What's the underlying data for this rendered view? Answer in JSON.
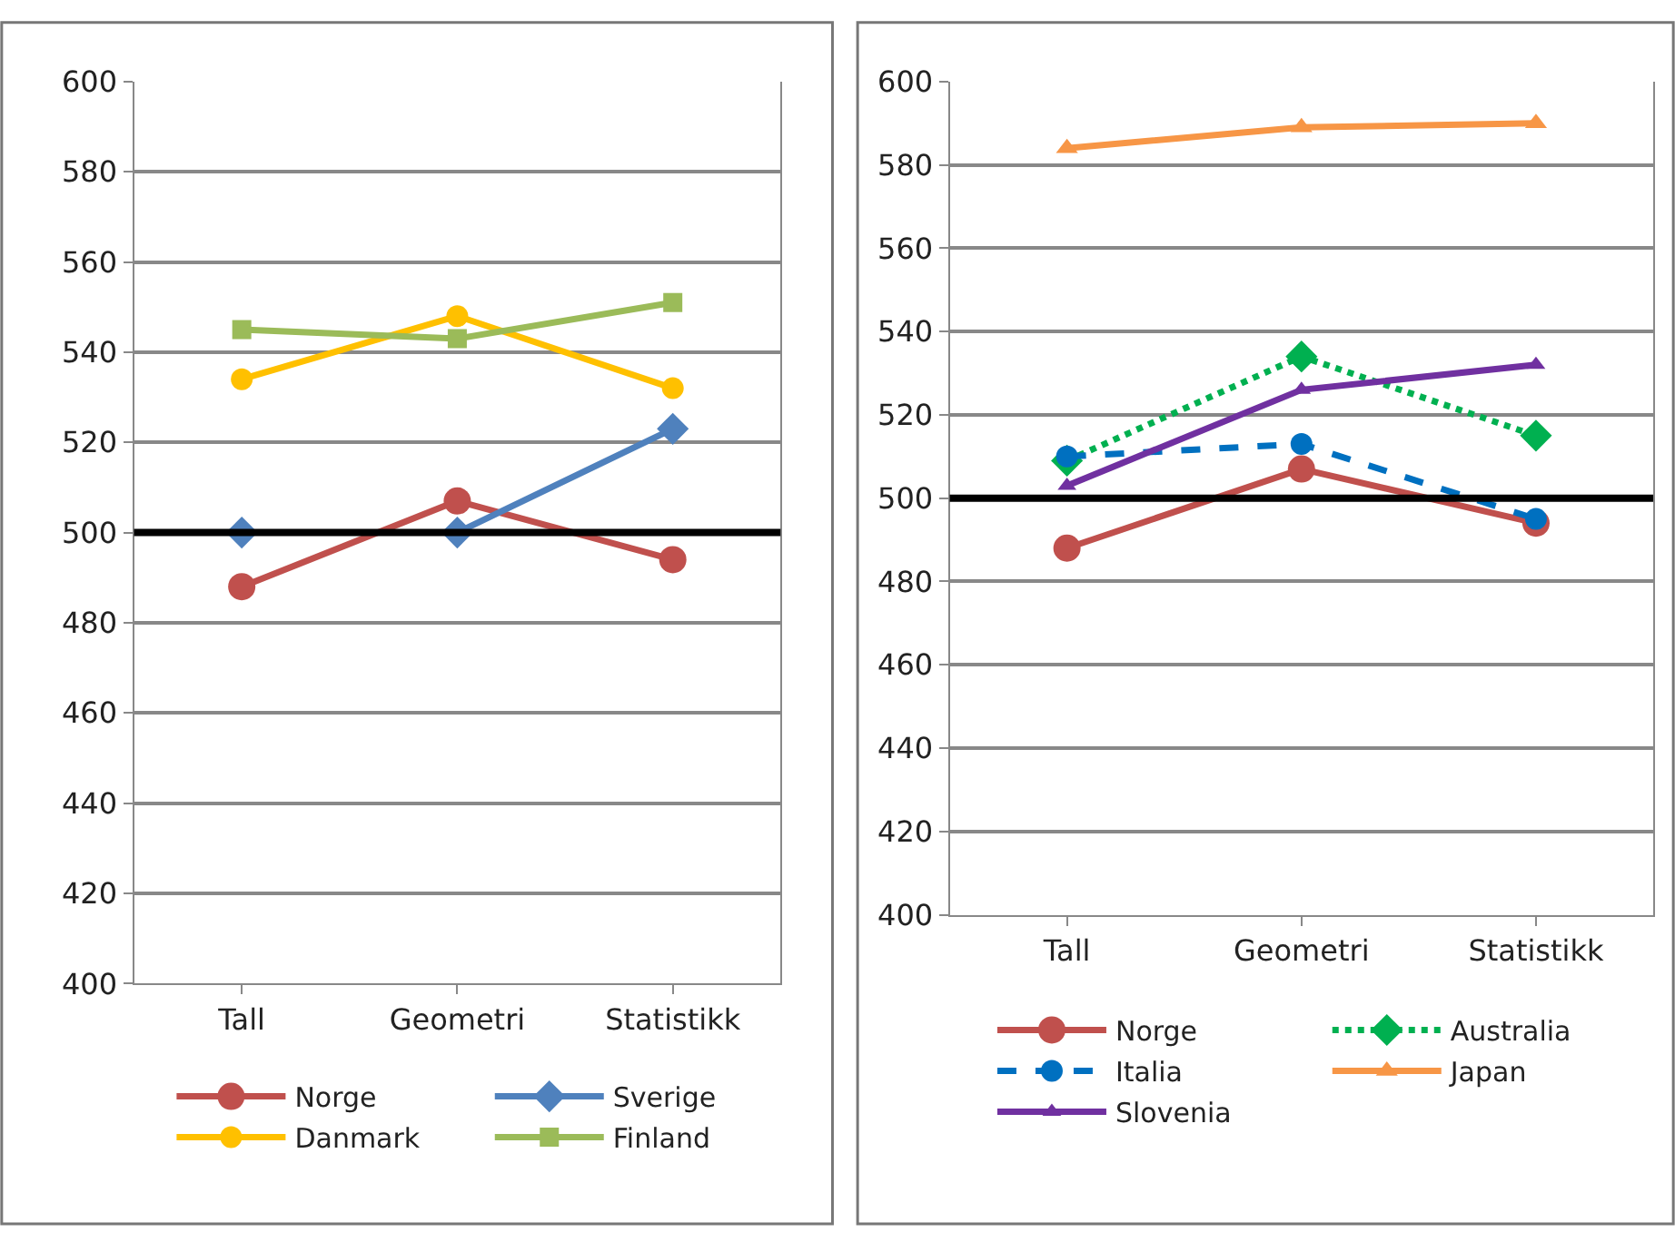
{
  "chart_data": [
    {
      "type": "line",
      "categories": [
        "Tall",
        "Geometri",
        "Statistikk"
      ],
      "ylim": [
        400,
        600
      ],
      "yticks": [
        400,
        420,
        440,
        460,
        480,
        500,
        520,
        540,
        560,
        580,
        600
      ],
      "grid": "y",
      "legend": "bottom",
      "ref_lines": [
        {
          "axis": "y",
          "value": 500,
          "color": "#000000"
        }
      ],
      "series": [
        {
          "name": "Norge",
          "color": "#c0504d",
          "values": [
            488,
            507,
            494
          ],
          "marker": "circle",
          "line_style": "solid"
        },
        {
          "name": "Sverige",
          "color": "#4f81bd",
          "values": [
            500,
            500,
            523
          ],
          "marker": "diamond",
          "line_style": "solid"
        },
        {
          "name": "Danmark",
          "color": "#ffc000",
          "values": [
            534,
            548,
            532
          ],
          "marker": "circle",
          "line_style": "solid"
        },
        {
          "name": "Finland",
          "color": "#9bbb59",
          "values": [
            545,
            543,
            551
          ],
          "marker": "square",
          "line_style": "solid"
        }
      ]
    },
    {
      "type": "line",
      "categories": [
        "Tall",
        "Geometri",
        "Statistikk"
      ],
      "ylim": [
        400,
        600
      ],
      "yticks": [
        400,
        420,
        440,
        460,
        480,
        500,
        520,
        540,
        560,
        580,
        600
      ],
      "grid": "y",
      "legend": "bottom",
      "ref_lines": [
        {
          "axis": "y",
          "value": 500,
          "color": "#000000"
        }
      ],
      "series": [
        {
          "name": "Norge",
          "color": "#c0504d",
          "values": [
            488,
            507,
            494
          ],
          "marker": "circle",
          "line_style": "solid"
        },
        {
          "name": "Australia",
          "color": "#00b050",
          "values": [
            509,
            534,
            515
          ],
          "marker": "diamond",
          "line_style": "dotted"
        },
        {
          "name": "Italia",
          "color": "#0070c0",
          "values": [
            510,
            513,
            495
          ],
          "marker": "circle",
          "line_style": "dashed"
        },
        {
          "name": "Japan",
          "color": "#f79646",
          "values": [
            584,
            589,
            590
          ],
          "marker": "triangle",
          "line_style": "solid"
        },
        {
          "name": "Slovenia",
          "color": "#7030a0",
          "values": [
            503,
            526,
            532
          ],
          "marker": "triangle",
          "line_style": "solid"
        }
      ]
    }
  ]
}
